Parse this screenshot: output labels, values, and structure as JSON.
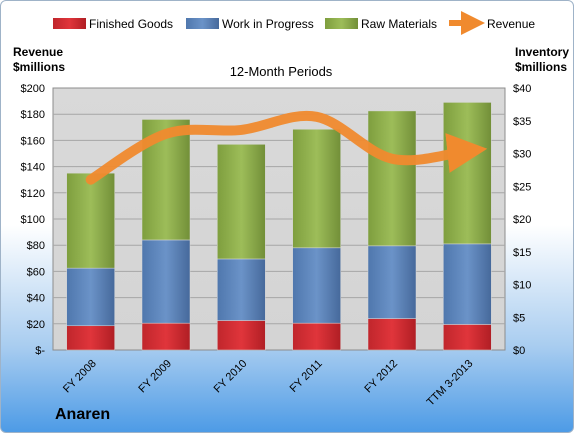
{
  "chart_data": {
    "type": "bar",
    "title": "12-Month Periods",
    "left_axis_title": [
      "Revenue",
      "$millions"
    ],
    "right_axis_title": [
      "Inventory",
      "$millions"
    ],
    "categories": [
      "FY 2008",
      "FY 2009",
      "FY 2010",
      "FY 2011",
      "FY 2012",
      "TTM 3-2013"
    ],
    "left_ylim": [
      0,
      200
    ],
    "left_ticks": [
      "$-",
      "$20",
      "$40",
      "$60",
      "$80",
      "$100",
      "$120",
      "$140",
      "$160",
      "$180",
      "$200"
    ],
    "right_ylim": [
      0,
      40
    ],
    "right_ticks": [
      "$0",
      "$5",
      "$10",
      "$15",
      "$20",
      "$25",
      "$30",
      "$35",
      "$40"
    ],
    "legend_position": "top",
    "grid": true,
    "series": [
      {
        "name": "Finished Goods",
        "kind": "stacked-bar",
        "axis": "right",
        "color": "#c0262c",
        "values": [
          3.7,
          4.1,
          4.5,
          4.1,
          4.8,
          3.9
        ]
      },
      {
        "name": "Work in Progress",
        "kind": "stacked-bar",
        "axis": "right",
        "color": "#4f81bd",
        "values": [
          8.8,
          12.7,
          9.4,
          11.5,
          11.1,
          12.3
        ]
      },
      {
        "name": "Raw Materials",
        "kind": "stacked-bar",
        "axis": "right",
        "color": "#9bbb59",
        "values": [
          14.5,
          18.4,
          17.5,
          18.1,
          20.6,
          21.6
        ]
      },
      {
        "name": "Revenue",
        "kind": "line",
        "axis": "left",
        "color": "#f08a2e",
        "values": [
          130,
          165,
          168,
          178,
          146,
          152
        ]
      }
    ]
  },
  "company": "Anaren"
}
